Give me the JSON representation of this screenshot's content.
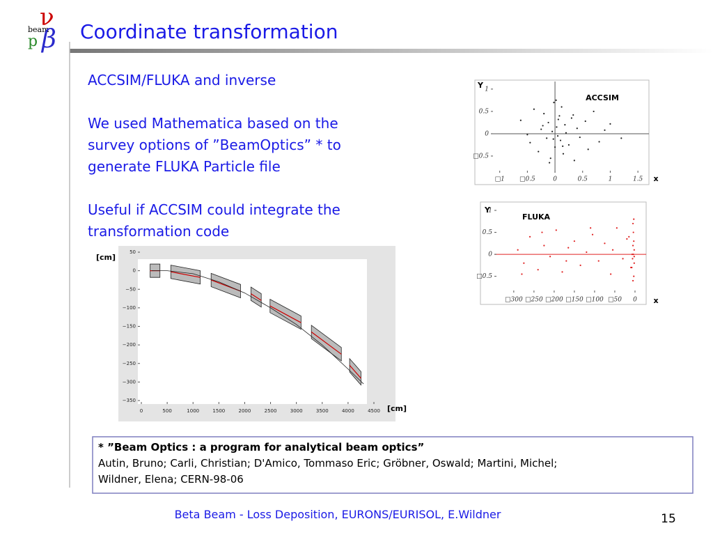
{
  "logo": {
    "nu": "ν",
    "beam": "beam",
    "p": "p",
    "beta": "β"
  },
  "title": "Coordinate transformation",
  "paragraphs": [
    [
      "ACCSIM/FLUKA and inverse"
    ],
    [
      "We used Mathematica based on the",
      "survey options of ”BeamOptics” * to",
      "generate FLUKA Particle file"
    ],
    [
      "Useful if ACCSIM could integrate the",
      "transformation code"
    ]
  ],
  "chart_data": [
    {
      "type": "scatter",
      "ylabel": "Y",
      "xlabel": "x",
      "annotation": "ACCSIM",
      "color": "#222222",
      "x": [
        -0.62,
        -0.45,
        -0.38,
        -0.3,
        -0.25,
        -0.2,
        -0.15,
        -0.12,
        -0.08,
        -0.05,
        -0.02,
        0,
        0.03,
        0.05,
        0.08,
        0.1,
        0.12,
        0.15,
        0.18,
        0.2,
        0.25,
        0.3,
        0.35,
        0.4,
        0.45,
        0.55,
        0.6,
        0.7,
        0.8,
        0.9,
        1.0,
        1.2,
        -0.5,
        -0.1,
        0.02,
        0.06,
        -0.03,
        0.14,
        0.33,
        -0.22
      ],
      "values": [
        0.3,
        -0.2,
        0.55,
        -0.4,
        0.1,
        0.45,
        -0.1,
        0.25,
        -0.55,
        0.05,
        0.7,
        -0.3,
        0.15,
        -0.05,
        0.4,
        -0.15,
        0.6,
        -0.45,
        0.2,
        0.02,
        -0.25,
        0.35,
        -0.6,
        0.12,
        -0.08,
        0.28,
        -0.35,
        0.5,
        -0.18,
        0.08,
        0.22,
        -0.1,
        -0.02,
        -0.65,
        0.75,
        0.32,
        -0.12,
        -0.28,
        0.42,
        0.18
      ],
      "xlim": [
        -1.16,
        1.7
      ],
      "ylim": [
        -0.875,
        1.17
      ],
      "xticks": [
        {
          "value": -1,
          "label": "□1"
        },
        {
          "value": -0.5,
          "label": "□0.5"
        },
        0,
        0.5,
        1,
        1.5
      ],
      "yticks": [
        {
          "value": -0.5,
          "label": "□0.5"
        },
        0,
        0.5,
        1
      ]
    },
    {
      "type": "scatter",
      "ylabel": "Y",
      "xlabel": "x",
      "annotation": "FLUKA",
      "color": "#e02020",
      "x": [
        -290,
        -275,
        -260,
        -240,
        -225,
        -210,
        -195,
        -180,
        -165,
        -150,
        -135,
        -120,
        -105,
        -90,
        -75,
        -60,
        -45,
        -30,
        -20,
        -10,
        -5,
        -4,
        -3,
        -2,
        -6,
        -8,
        -3,
        -5,
        -2,
        -4,
        -280,
        -230,
        -170,
        -110,
        -55,
        -15,
        -5,
        -3,
        -7,
        -2
      ],
      "values": [
        0.1,
        -0.2,
        0.4,
        -0.35,
        0.2,
        -0.05,
        0.55,
        -0.4,
        0.15,
        0.3,
        -0.25,
        0.05,
        0.45,
        -0.15,
        0.25,
        -0.45,
        0.6,
        -0.1,
        0.35,
        -0.3,
        0.7,
        0.5,
        0.3,
        0.1,
        -0.1,
        -0.3,
        -0.5,
        0.2,
        -0.2,
        0.0,
        -0.45,
        0.5,
        -0.15,
        0.6,
        0.1,
        0.4,
        -0.6,
        0.8,
        0.0,
        -0.05
      ],
      "xlim": [
        -348,
        27.6
      ],
      "ylim": [
        -0.87,
        1.19
      ],
      "xticks": [
        {
          "value": -300,
          "label": "□300"
        },
        {
          "value": -250,
          "label": "□250"
        },
        {
          "value": -200,
          "label": "□200"
        },
        {
          "value": -150,
          "label": "□150"
        },
        {
          "value": -100,
          "label": "□100"
        },
        {
          "value": -50,
          "label": "□50"
        },
        0
      ],
      "yticks": [
        {
          "value": -0.5,
          "label": "□0.5"
        },
        0,
        0.5,
        1
      ]
    },
    {
      "type": "line",
      "ylabel": "[cm]",
      "xlabel": "[cm]",
      "color": "#222222",
      "x": [
        200,
        500,
        1000,
        1500,
        2000,
        2500,
        3000,
        3500,
        4000,
        4300
      ],
      "values": [
        0,
        0,
        -8,
        -30,
        -60,
        -100,
        -145,
        -200,
        -265,
        -305
      ],
      "magnets": {
        "x_start": [
          170,
          570,
          1350,
          2120,
          2490,
          3290,
          4030
        ],
        "x_end": [
          360,
          1140,
          1920,
          2320,
          3090,
          3870,
          4250
        ],
        "y_start": [
          0,
          -3,
          -25,
          -62,
          -95,
          -165,
          -255
        ],
        "y_end": [
          0,
          -18,
          -55,
          -80,
          -140,
          -225,
          -290
        ]
      },
      "xlim": [
        0,
        4500
      ],
      "ylim": [
        -350,
        50
      ],
      "xticks": [
        0,
        500,
        1000,
        1500,
        2000,
        2500,
        3000,
        3500,
        4000,
        4500
      ],
      "yticks": [
        50,
        0,
        {
          "value": -50,
          "label": "−50"
        },
        {
          "value": -100,
          "label": "−100"
        },
        {
          "value": -150,
          "label": "−150"
        },
        {
          "value": -200,
          "label": "−200"
        },
        {
          "value": -250,
          "label": "−250"
        },
        {
          "value": -300,
          "label": "−300"
        },
        {
          "value": -350,
          "label": "−350"
        }
      ]
    }
  ],
  "footnote": {
    "title": "* ”Beam Optics : a program for analytical beam optics”",
    "lines": [
      "Autin, Bruno; Carli, Christian; D'Amico, Tommaso Eric; Gröbner, Oswald; Martini, Michel;",
      "Wildner, Elena; CERN-98-06"
    ]
  },
  "footer": "Beta Beam - Loss Deposition, EURONS/EURISOL, E.Wildner",
  "page_number": "15"
}
